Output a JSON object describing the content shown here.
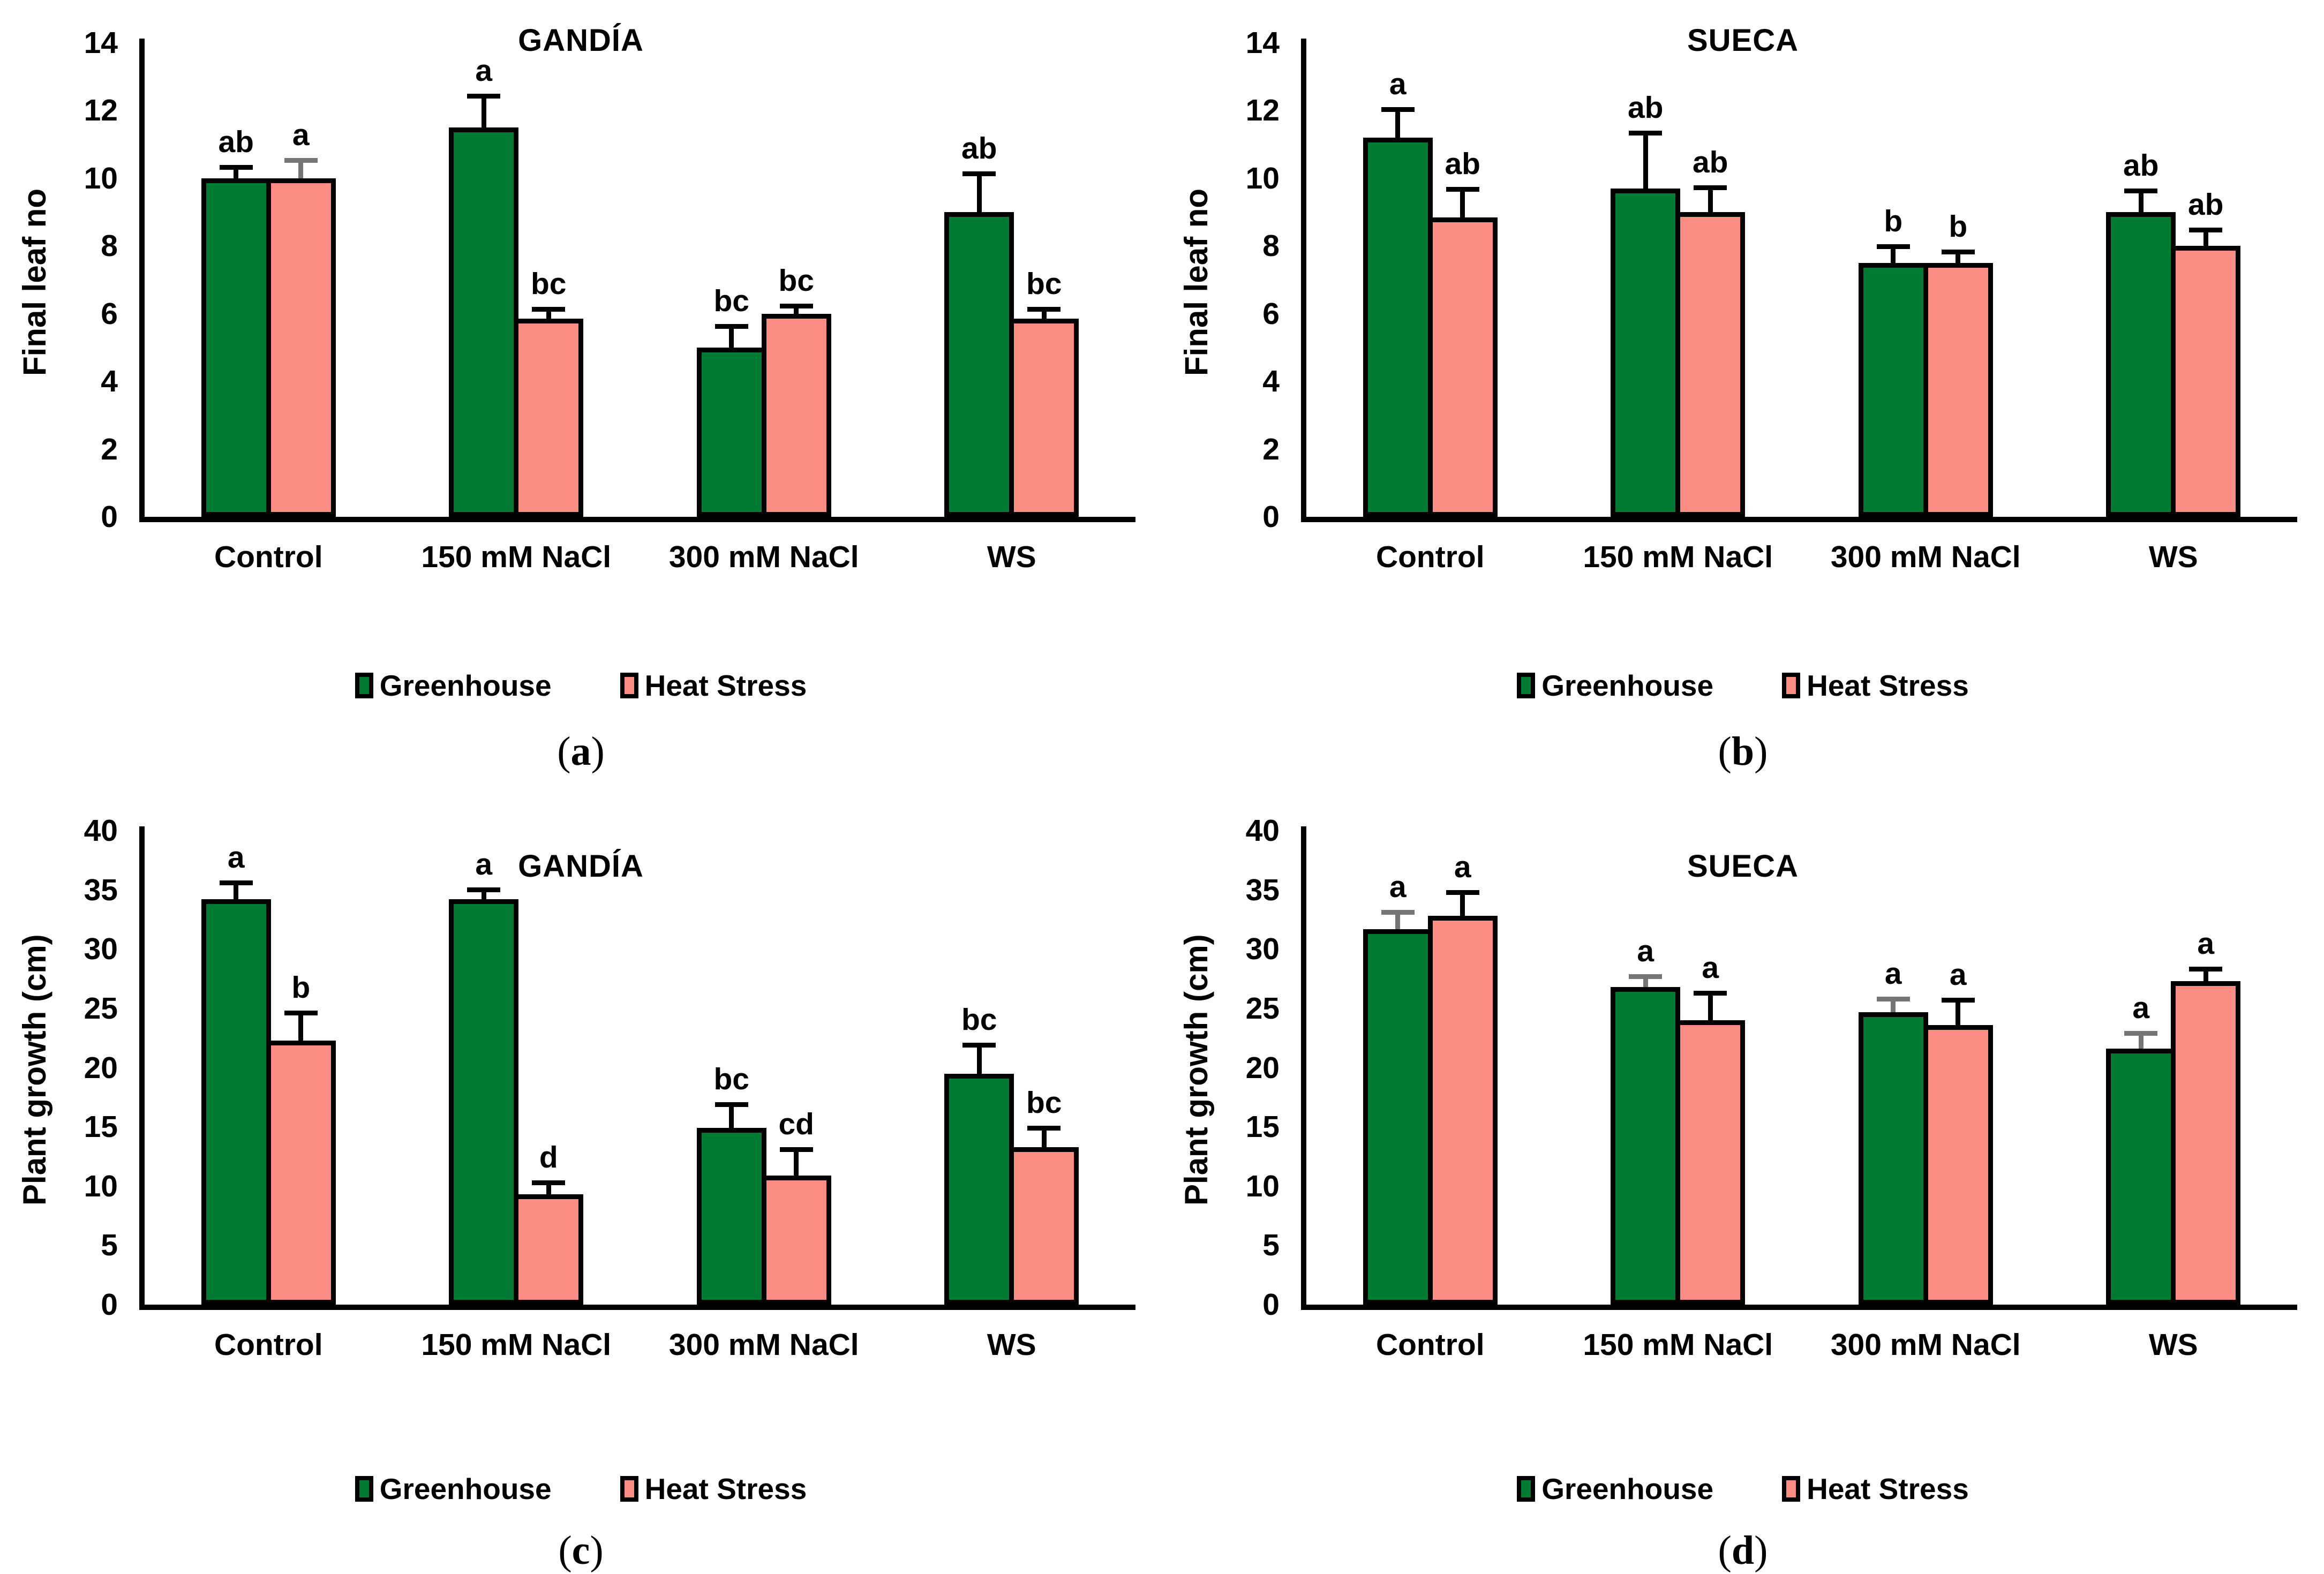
{
  "colors": {
    "greenhouse": "#007B33",
    "heat_stress": "#FC8D84",
    "error_black": "#000000",
    "error_gray": "#757575",
    "axis": "#000000"
  },
  "legend": {
    "items": [
      {
        "label": "Greenhouse",
        "swatch": "#007B33"
      },
      {
        "label": "Heat Stress",
        "swatch": "#FC8D84"
      }
    ]
  },
  "chart_data": [
    {
      "id": "a",
      "type": "bar",
      "title": "GANDÍA",
      "ylabel": "Final leaf no",
      "ylim": [
        0,
        14
      ],
      "yticks": [
        "0",
        "2",
        "4",
        "6",
        "8",
        "10",
        "12",
        "14"
      ],
      "grid": false,
      "legend_position": "bottom",
      "categories": [
        "Control",
        "150 mM NaCl",
        "300 mM NaCl",
        "WS"
      ],
      "series": [
        {
          "name": "Greenhouse",
          "color_key": "greenhouse",
          "values": [
            10,
            11.5,
            5,
            9
          ],
          "errors": [
            0.4,
            1.0,
            0.7,
            1.2
          ],
          "sig_labels": [
            "ab",
            "a",
            "bc",
            "ab"
          ],
          "err_colors": [
            "black",
            "black",
            "black",
            "black"
          ]
        },
        {
          "name": "Heat Stress",
          "color_key": "heat_stress",
          "values": [
            10,
            5.85,
            6,
            5.85
          ],
          "errors": [
            0.6,
            0.35,
            0.3,
            0.35
          ],
          "sig_labels": [
            "a",
            "bc",
            "bc",
            "bc"
          ],
          "err_colors": [
            "gray",
            "black",
            "black",
            "black"
          ]
        }
      ],
      "caption_open": "(",
      "caption_letter": "a",
      "caption_close": ")"
    },
    {
      "id": "b",
      "type": "bar",
      "title": "SUECA",
      "ylabel": "Final leaf no",
      "ylim": [
        0,
        14
      ],
      "yticks": [
        "0",
        "2",
        "4",
        "6",
        "8",
        "10",
        "12",
        "14"
      ],
      "grid": false,
      "legend_position": "bottom",
      "categories": [
        "Control",
        "150 mM NaCl",
        "300 mM NaCl",
        "WS"
      ],
      "series": [
        {
          "name": "Greenhouse",
          "color_key": "greenhouse",
          "values": [
            11.2,
            9.7,
            7.5,
            9
          ],
          "errors": [
            0.9,
            1.7,
            0.55,
            0.7
          ],
          "sig_labels": [
            "a",
            "ab",
            "b",
            "ab"
          ],
          "err_colors": [
            "black",
            "black",
            "black",
            "black"
          ]
        },
        {
          "name": "Heat Stress",
          "color_key": "heat_stress",
          "values": [
            8.85,
            9,
            7.5,
            8
          ],
          "errors": [
            0.9,
            0.8,
            0.4,
            0.55
          ],
          "sig_labels": [
            "ab",
            "ab",
            "b",
            "ab"
          ],
          "err_colors": [
            "black",
            "black",
            "black",
            "black"
          ]
        }
      ],
      "caption_open": "(",
      "caption_letter": "b",
      "caption_close": ")"
    },
    {
      "id": "c",
      "type": "bar",
      "title": "GANDÍA",
      "ylabel": "Plant growth (cm)",
      "ylim": [
        0,
        40
      ],
      "yticks": [
        "0",
        "5",
        "10",
        "15",
        "20",
        "25",
        "30",
        "35",
        "40"
      ],
      "grid": false,
      "legend_position": "bottom",
      "categories": [
        "Control",
        "150 mM NaCl",
        "300 mM NaCl",
        "WS"
      ],
      "series": [
        {
          "name": "Greenhouse",
          "color_key": "greenhouse",
          "values": [
            34.2,
            34.2,
            14.9,
            19.5
          ],
          "errors": [
            1.6,
            1.0,
            2.2,
            2.6
          ],
          "sig_labels": [
            "a",
            "a",
            "bc",
            "bc"
          ],
          "err_colors": [
            "black",
            "black",
            "black",
            "black"
          ]
        },
        {
          "name": "Heat Stress",
          "color_key": "heat_stress",
          "values": [
            22.3,
            9.3,
            10.9,
            13.3
          ],
          "errors": [
            2.5,
            1.2,
            2.4,
            1.8
          ],
          "sig_labels": [
            "b",
            "d",
            "cd",
            "bc"
          ],
          "err_colors": [
            "black",
            "black",
            "black",
            "black"
          ]
        }
      ],
      "caption_open": "(",
      "caption_letter": "c",
      "caption_close": ")"
    },
    {
      "id": "d",
      "type": "bar",
      "title": "SUECA",
      "ylabel": "Plant growth (cm)",
      "ylim": [
        0,
        40
      ],
      "yticks": [
        "0",
        "5",
        "10",
        "15",
        "20",
        "25",
        "30",
        "35",
        "40"
      ],
      "grid": false,
      "legend_position": "bottom",
      "categories": [
        "Control",
        "150 mM NaCl",
        "300 mM NaCl",
        "WS"
      ],
      "series": [
        {
          "name": "Greenhouse",
          "color_key": "greenhouse",
          "values": [
            31.7,
            26.8,
            24.7,
            21.6
          ],
          "errors": [
            1.6,
            1.1,
            1.3,
            1.5
          ],
          "sig_labels": [
            "a",
            "a",
            "a",
            "a"
          ],
          "err_colors": [
            "gray",
            "gray",
            "gray",
            "gray"
          ]
        },
        {
          "name": "Heat Stress",
          "color_key": "heat_stress",
          "values": [
            32.8,
            24.0,
            23.6,
            27.3
          ],
          "errors": [
            2.2,
            2.5,
            2.3,
            1.2
          ],
          "sig_labels": [
            "a",
            "a",
            "a",
            "a"
          ],
          "err_colors": [
            "black",
            "black",
            "black",
            "black"
          ]
        }
      ],
      "caption_open": "(",
      "caption_letter": "d",
      "caption_close": ")"
    }
  ]
}
